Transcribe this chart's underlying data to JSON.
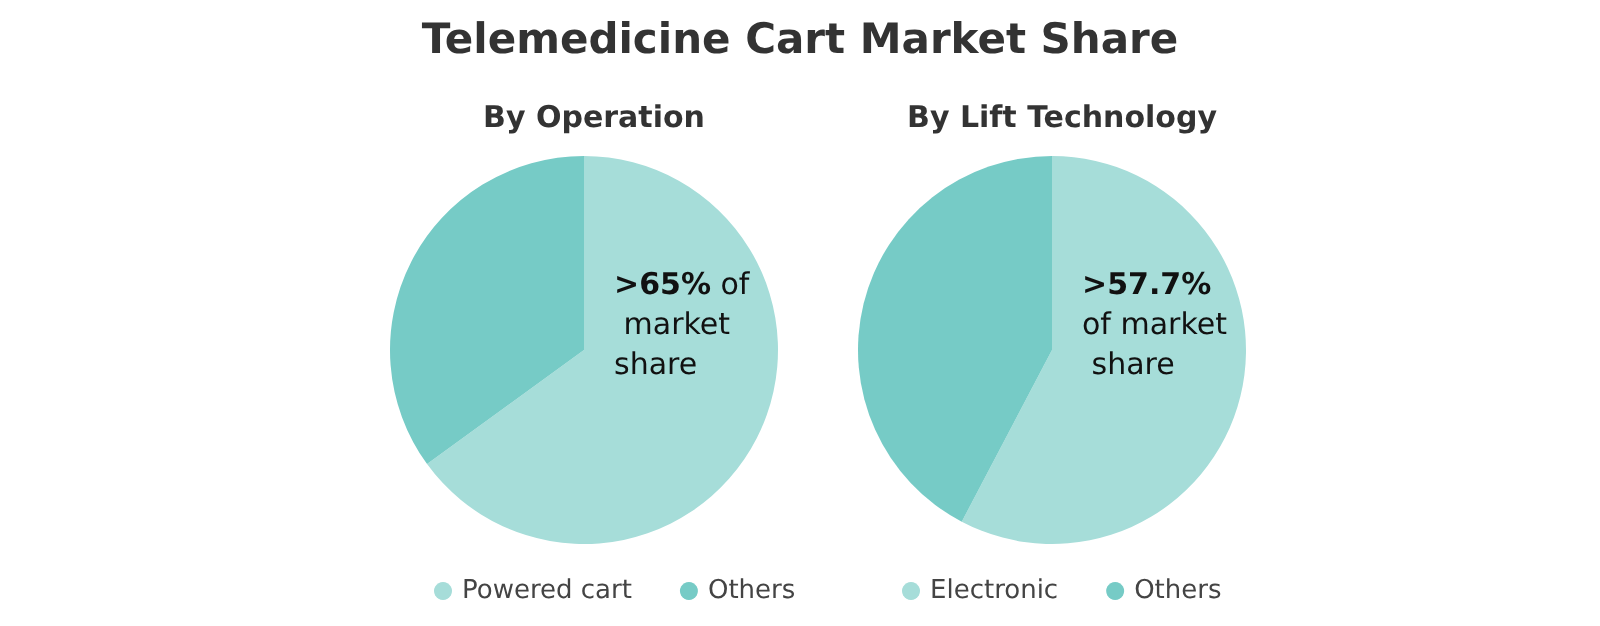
{
  "chart_data": [
    {
      "type": "pie",
      "title": "Telemedicine Cart Market Share",
      "subtitle": "By Operation",
      "categories": [
        "Powered cart",
        "Others"
      ],
      "values": [
        65,
        35
      ],
      "colors": [
        "#a6ddd9",
        "#76cbc6"
      ],
      "legend": "bottom",
      "annotations": [
        ">65% of market share"
      ]
    },
    {
      "type": "pie",
      "subtitle": "By Lift Technology",
      "categories": [
        "Electronic",
        "Others"
      ],
      "values": [
        57.7,
        42.3
      ],
      "colors": [
        "#a6ddd9",
        "#76cbc6"
      ],
      "legend": "bottom",
      "annotations": [
        ">57.7% of market share"
      ]
    }
  ]
}
